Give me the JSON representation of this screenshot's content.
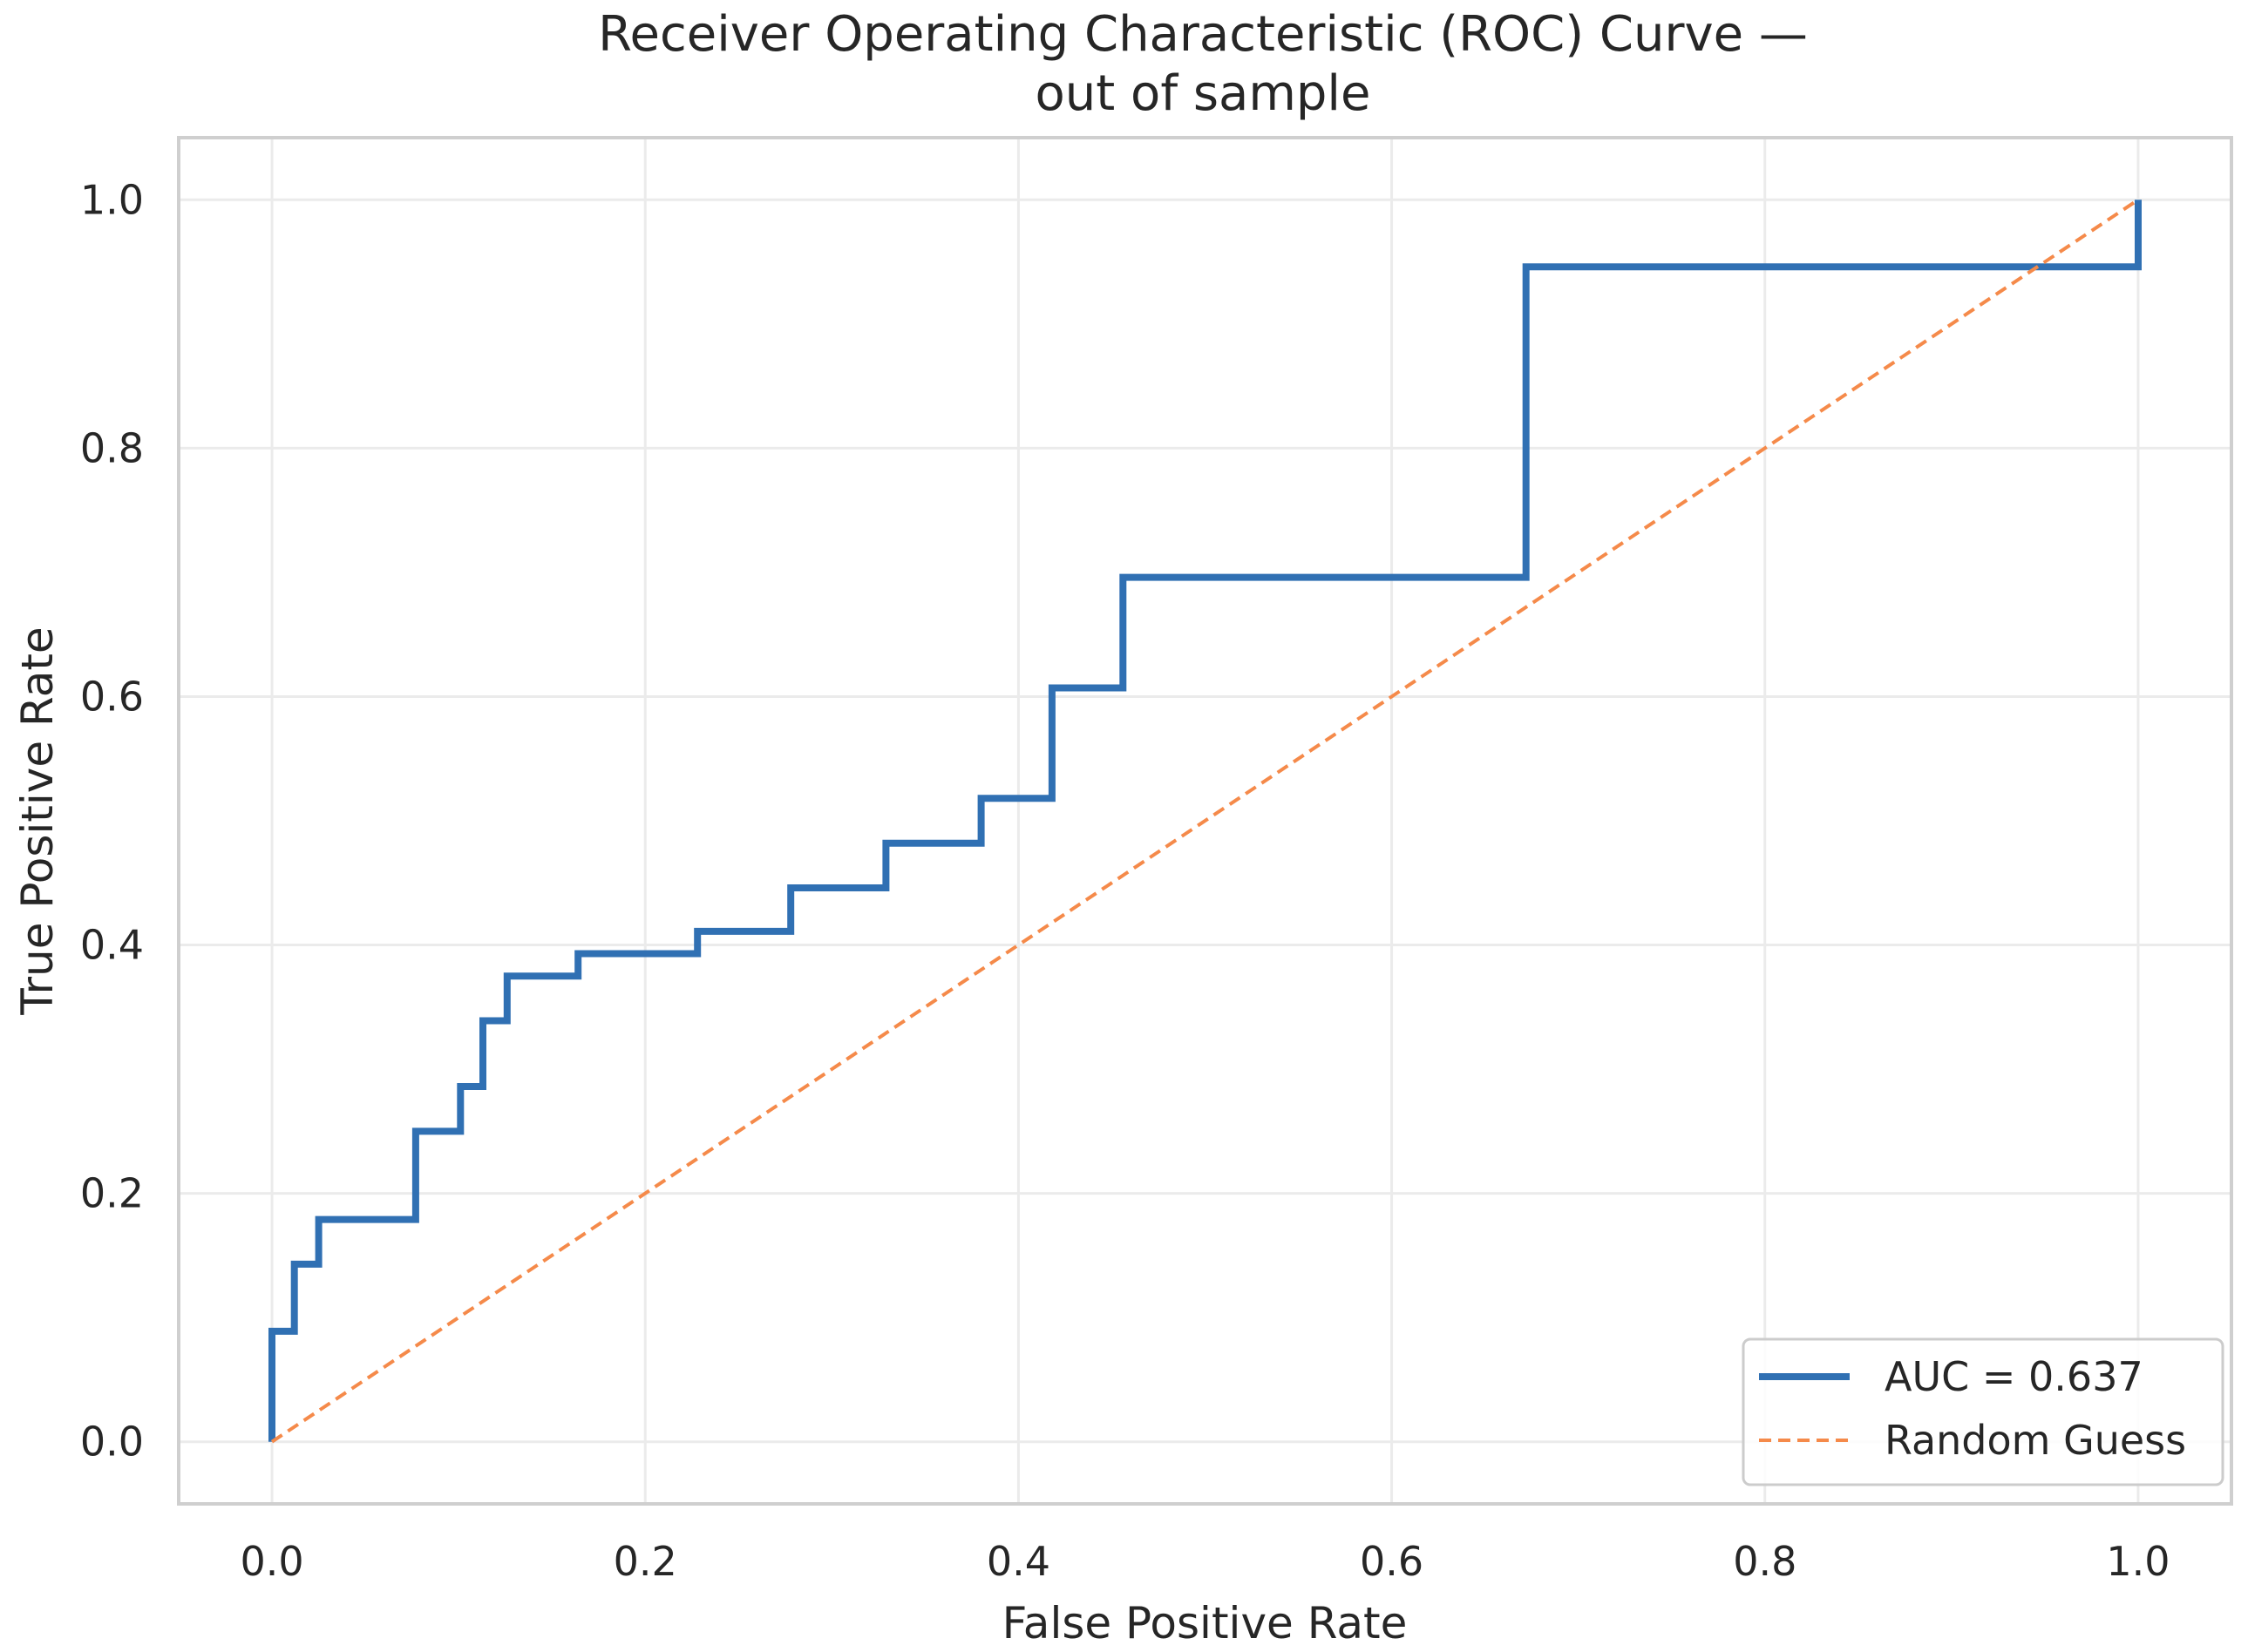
{
  "chart_data": {
    "type": "line",
    "title_lines": [
      "Receiver Operating Characteristic (ROC) Curve —",
      "out of sample"
    ],
    "xlabel": "False Positive Rate",
    "ylabel": "True Positive Rate",
    "xlim": [
      -0.05,
      1.05
    ],
    "ylim": [
      -0.05,
      1.05
    ],
    "grid": true,
    "legend_position": "lower-right",
    "x_ticks": [
      "0.0",
      "0.2",
      "0.4",
      "0.6",
      "0.8",
      "1.0"
    ],
    "y_ticks": [
      "0.0",
      "0.2",
      "0.4",
      "0.6",
      "0.8",
      "1.0"
    ],
    "series": [
      {
        "name": "AUC = 0.637",
        "color": "#3070b3",
        "style": "solid",
        "x": [
          0.0,
          0.0,
          0.012,
          0.012,
          0.025,
          0.025,
          0.077,
          0.077,
          0.101,
          0.101,
          0.113,
          0.113,
          0.126,
          0.126,
          0.164,
          0.164,
          0.228,
          0.228,
          0.278,
          0.278,
          0.329,
          0.329,
          0.38,
          0.38,
          0.418,
          0.418,
          0.456,
          0.456,
          0.672,
          0.672,
          1.0,
          1.0
        ],
        "y": [
          0.0,
          0.089,
          0.089,
          0.143,
          0.143,
          0.179,
          0.179,
          0.25,
          0.25,
          0.286,
          0.286,
          0.339,
          0.339,
          0.375,
          0.375,
          0.393,
          0.393,
          0.411,
          0.411,
          0.446,
          0.446,
          0.482,
          0.482,
          0.518,
          0.518,
          0.607,
          0.607,
          0.696,
          0.696,
          0.946,
          0.946,
          1.0
        ]
      },
      {
        "name": "Random Guess",
        "color": "#f58a4a",
        "style": "dashed",
        "x": [
          0.0,
          1.0
        ],
        "y": [
          0.0,
          1.0
        ]
      }
    ]
  }
}
